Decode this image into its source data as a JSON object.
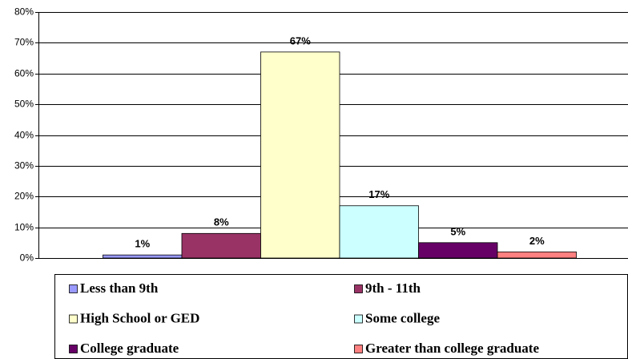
{
  "chart_data": {
    "type": "bar",
    "series": [
      {
        "name": "Less than 9th",
        "color": "#9999ff",
        "values": [
          1
        ],
        "value_labels": [
          "1%"
        ]
      },
      {
        "name": "9th - 11th",
        "color": "#993366",
        "values": [
          8
        ],
        "value_labels": [
          "8%"
        ]
      },
      {
        "name": "High School or GED",
        "color": "#ffffcc",
        "values": [
          67
        ],
        "value_labels": [
          "67%"
        ]
      },
      {
        "name": "Some college",
        "color": "#ccffff",
        "values": [
          17
        ],
        "value_labels": [
          "17%"
        ]
      },
      {
        "name": "College graduate",
        "color": "#660066",
        "values": [
          5
        ],
        "value_labels": [
          "5%"
        ]
      },
      {
        "name": "Greater than college graduate",
        "color": "#ff8080",
        "values": [
          2
        ],
        "value_labels": [
          "2%"
        ]
      }
    ],
    "ylim": [
      0,
      80
    ],
    "yticks": [
      {
        "value": 0,
        "label": "0%"
      },
      {
        "value": 10,
        "label": "10%"
      },
      {
        "value": 20,
        "label": "20%"
      },
      {
        "value": 30,
        "label": "30%"
      },
      {
        "value": 40,
        "label": "40%"
      },
      {
        "value": 50,
        "label": "50%"
      },
      {
        "value": 60,
        "label": "60%"
      },
      {
        "value": 70,
        "label": "70%"
      },
      {
        "value": 80,
        "label": "80%"
      }
    ],
    "grid": true,
    "legend": "bottom"
  }
}
